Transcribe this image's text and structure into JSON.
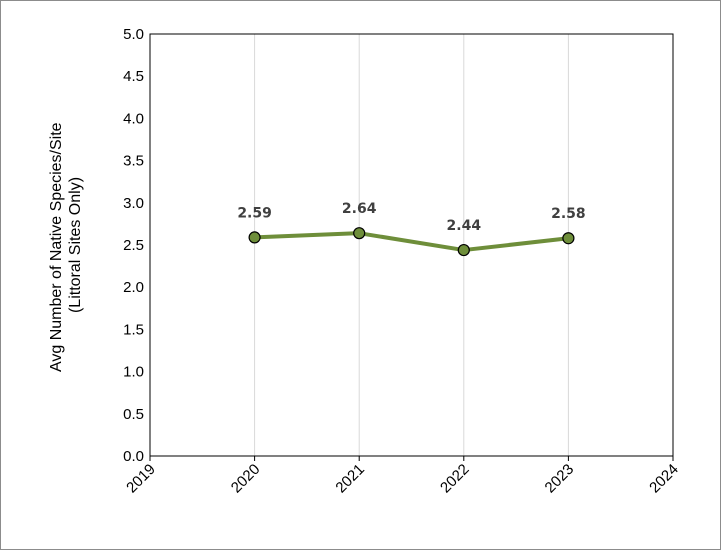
{
  "chart_data": {
    "type": "line",
    "ylabel_lines": [
      "Avg Number of Native Species/Site",
      "(Littoral Sites Only)"
    ],
    "xlim": [
      2019,
      2024
    ],
    "ylim": [
      0,
      5
    ],
    "x_ticks": [
      "2019",
      "2020",
      "2021",
      "2022",
      "2023",
      "2024"
    ],
    "y_ticks": [
      "0.0",
      "0.5",
      "1.0",
      "1.5",
      "2.0",
      "2.5",
      "3.0",
      "3.5",
      "4.0",
      "4.5",
      "5.0"
    ],
    "grid": "vertical",
    "series": [
      {
        "x": [
          2020,
          2021,
          2022,
          2023
        ],
        "values": [
          2.59,
          2.64,
          2.44,
          2.58
        ],
        "labels": [
          "2.59",
          "2.64",
          "2.44",
          "2.58"
        ],
        "color": "#6e8e3a",
        "marker_color": "#6e8e3a"
      }
    ]
  }
}
